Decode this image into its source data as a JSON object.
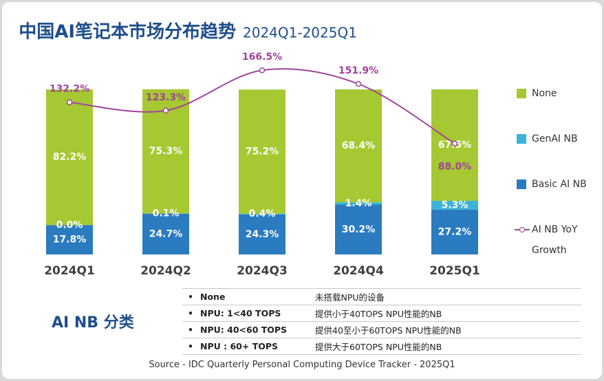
{
  "chart_data": {
    "type": "stacked-bar-line",
    "title": "中国AI笔记本市场分布趋势",
    "subtitle": "2024Q1-2025Q1",
    "categories": [
      "2024Q1",
      "2024Q2",
      "2024Q3",
      "2024Q4",
      "2025Q1"
    ],
    "ylim": [
      0,
      100
    ],
    "y2lim": [
      -31,
      146
    ],
    "series": [
      {
        "name": "Basic AI NB",
        "color": "#2a7bc0",
        "values": [
          17.8,
          24.7,
          24.3,
          30.2,
          27.2
        ],
        "value_labels": [
          "17.8%",
          "24.7%",
          "24.3%",
          "30.2%",
          "27.2%"
        ]
      },
      {
        "name": "GenAI NB",
        "color": "#3bb3d6",
        "values": [
          0.0,
          0.1,
          0.4,
          1.4,
          5.3
        ],
        "value_labels": [
          "0.0%",
          "0.1%",
          "0.4%",
          "1.4%",
          "5.3%"
        ]
      },
      {
        "name": "None",
        "color": "#a6c832",
        "values": [
          82.2,
          75.3,
          75.2,
          68.4,
          67.5
        ],
        "value_labels": [
          "82.2%",
          "75.3%",
          "75.2%",
          "68.4%",
          "67.5%"
        ]
      },
      {
        "name": "AI NB YoY Growth",
        "color": "#a0449a",
        "axis": "y2",
        "line": true,
        "values": [
          132.2,
          123.3,
          166.5,
          151.9,
          88.0
        ],
        "value_labels": [
          "132.2%",
          "123.3%",
          "166.5%",
          "151.9%",
          "88.0%"
        ]
      }
    ]
  },
  "classification": {
    "title": "AI NB 分类",
    "rows": [
      [
        "None",
        "未搭载NPU的设备"
      ],
      [
        "NPU: 1<40 TOPS",
        "提供小于40TOPS NPU性能的NB"
      ],
      [
        "NPU: 40<60 TOPS",
        "提供40至小于60TOPS NPU性能的NB"
      ],
      [
        "NPU : 60+ TOPS",
        "提供大于60TOPS NPU性能的NB"
      ]
    ]
  },
  "source": "Source - IDC Quarterly Personal Computing Device Tracker - 2025Q1"
}
